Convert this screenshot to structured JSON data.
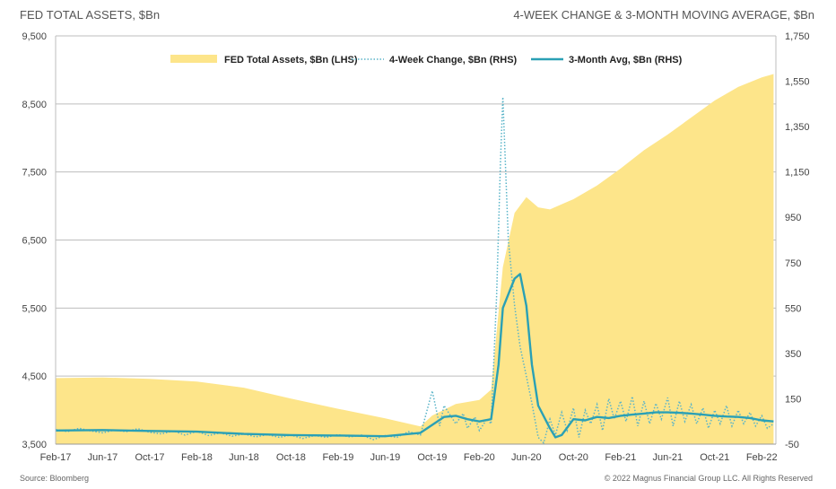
{
  "titles": {
    "left": "FED TOTAL ASSETS, $Bn",
    "right": "4-WEEK CHANGE & 3-MONTH MOVING AVERAGE, $Bn"
  },
  "footer": {
    "source": "Source: Bloomberg",
    "copyright": "© 2022 Magnus Financial Group LLC. All Rights Reserved"
  },
  "chart_data": {
    "type": "area",
    "x_tick_labels": [
      "Feb-17",
      "Jun-17",
      "Oct-17",
      "Feb-18",
      "Jun-18",
      "Oct-18",
      "Feb-19",
      "Jun-19",
      "Oct-19",
      "Feb-20",
      "Jun-20",
      "Oct-20",
      "Feb-21",
      "Jun-21",
      "Oct-21",
      "Feb-22"
    ],
    "y_left": {
      "ylim": [
        3500,
        9500
      ],
      "ticks": [
        "3,500",
        "4,500",
        "5,500",
        "6,500",
        "7,500",
        "8,500",
        "9,500"
      ]
    },
    "y_right": {
      "ylim": [
        -50,
        1750
      ],
      "ticks": [
        "-50",
        "150",
        "350",
        "550",
        "750",
        "950",
        "1,150",
        "1,350",
        "1,550",
        "1,750"
      ]
    },
    "grid": true,
    "legend_position": "top",
    "colors": {
      "assets": "#fde58a",
      "change": "#5ab4c8",
      "avg": "#2aa0b5",
      "grid": "#bdbdbd"
    },
    "x_start": "2017-02",
    "series": [
      {
        "name": "FED Total Assets, $Bn (LHS)",
        "axis": "left",
        "style": "area",
        "points": [
          [
            "2017-02",
            4470
          ],
          [
            "2017-06",
            4480
          ],
          [
            "2017-10",
            4460
          ],
          [
            "2018-02",
            4420
          ],
          [
            "2018-06",
            4330
          ],
          [
            "2018-10",
            4170
          ],
          [
            "2019-02",
            4020
          ],
          [
            "2019-06",
            3880
          ],
          [
            "2019-09",
            3760
          ],
          [
            "2019-10",
            3920
          ],
          [
            "2019-12",
            4090
          ],
          [
            "2020-02",
            4150
          ],
          [
            "2020-03",
            4300
          ],
          [
            "2020-04",
            6100
          ],
          [
            "2020-05",
            6900
          ],
          [
            "2020-06",
            7130
          ],
          [
            "2020-07",
            6980
          ],
          [
            "2020-08",
            6950
          ],
          [
            "2020-10",
            7100
          ],
          [
            "2020-12",
            7300
          ],
          [
            "2021-02",
            7550
          ],
          [
            "2021-04",
            7820
          ],
          [
            "2021-06",
            8050
          ],
          [
            "2021-08",
            8300
          ],
          [
            "2021-10",
            8550
          ],
          [
            "2021-12",
            8750
          ],
          [
            "2022-02",
            8890
          ],
          [
            "2022-03",
            8940
          ]
        ]
      },
      {
        "name": "4-Week Change, $Bn (RHS)",
        "axis": "right",
        "style": "dotted",
        "points": [
          [
            "2017-02",
            15
          ],
          [
            "2017-03",
            5
          ],
          [
            "2017-04",
            20
          ],
          [
            "2017-05",
            8
          ],
          [
            "2017-06",
            0
          ],
          [
            "2017-07",
            12
          ],
          [
            "2017-08",
            5
          ],
          [
            "2017-09",
            18
          ],
          [
            "2017-10",
            2
          ],
          [
            "2017-11",
            -5
          ],
          [
            "2017-12",
            8
          ],
          [
            "2018-01",
            -10
          ],
          [
            "2018-02",
            6
          ],
          [
            "2018-03",
            -12
          ],
          [
            "2018-04",
            0
          ],
          [
            "2018-05",
            -15
          ],
          [
            "2018-06",
            -5
          ],
          [
            "2018-07",
            -18
          ],
          [
            "2018-08",
            -8
          ],
          [
            "2018-09",
            -20
          ],
          [
            "2018-10",
            -10
          ],
          [
            "2018-11",
            -25
          ],
          [
            "2018-12",
            -12
          ],
          [
            "2019-01",
            -20
          ],
          [
            "2019-02",
            -8
          ],
          [
            "2019-03",
            -18
          ],
          [
            "2019-04",
            -10
          ],
          [
            "2019-05",
            -30
          ],
          [
            "2019-06",
            -12
          ],
          [
            "2019-07",
            -20
          ],
          [
            "2019-08",
            5
          ],
          [
            "2019-09",
            -10
          ],
          [
            "2019-10",
            185
          ],
          [
            "2019-10-20",
            30
          ],
          [
            "2019-11",
            120
          ],
          [
            "2019-12",
            40
          ],
          [
            "2019-12-20",
            85
          ],
          [
            "2020-01",
            20
          ],
          [
            "2020-01-20",
            70
          ],
          [
            "2020-02",
            10
          ],
          [
            "2020-02-20",
            60
          ],
          [
            "2020-03",
            40
          ],
          [
            "2020-03-15",
            600
          ],
          [
            "2020-03-25",
            1200
          ],
          [
            "2020-04",
            1480
          ],
          [
            "2020-04-15",
            850
          ],
          [
            "2020-05",
            560
          ],
          [
            "2020-05-15",
            380
          ],
          [
            "2020-06",
            250
          ],
          [
            "2020-06-15",
            130
          ],
          [
            "2020-07",
            -20
          ],
          [
            "2020-07-15",
            -45
          ],
          [
            "2020-08",
            60
          ],
          [
            "2020-08-15",
            -10
          ],
          [
            "2020-09",
            90
          ],
          [
            "2020-09-15",
            10
          ],
          [
            "2020-10",
            110
          ],
          [
            "2020-10-15",
            -20
          ],
          [
            "2020-11",
            100
          ],
          [
            "2020-11-15",
            40
          ],
          [
            "2020-12",
            125
          ],
          [
            "2020-12-15",
            10
          ],
          [
            "2021-01",
            150
          ],
          [
            "2021-01-15",
            60
          ],
          [
            "2021-02",
            140
          ],
          [
            "2021-02-15",
            50
          ],
          [
            "2021-03",
            160
          ],
          [
            "2021-03-15",
            30
          ],
          [
            "2021-04",
            140
          ],
          [
            "2021-04-15",
            40
          ],
          [
            "2021-05",
            130
          ],
          [
            "2021-05-15",
            60
          ],
          [
            "2021-06",
            155
          ],
          [
            "2021-06-15",
            30
          ],
          [
            "2021-07",
            140
          ],
          [
            "2021-07-15",
            50
          ],
          [
            "2021-08",
            125
          ],
          [
            "2021-08-15",
            40
          ],
          [
            "2021-09",
            110
          ],
          [
            "2021-09-15",
            20
          ],
          [
            "2021-10",
            100
          ],
          [
            "2021-10-15",
            40
          ],
          [
            "2021-11",
            120
          ],
          [
            "2021-11-15",
            30
          ],
          [
            "2021-12",
            100
          ],
          [
            "2021-12-15",
            40
          ],
          [
            "2022-01",
            90
          ],
          [
            "2022-01-15",
            30
          ],
          [
            "2022-02",
            75
          ],
          [
            "2022-02-15",
            20
          ],
          [
            "2022-03",
            40
          ]
        ]
      },
      {
        "name": "3-Month Avg, $Bn (RHS)",
        "axis": "right",
        "style": "solid",
        "points": [
          [
            "2017-02",
            10
          ],
          [
            "2017-06",
            12
          ],
          [
            "2017-10",
            8
          ],
          [
            "2018-02",
            5
          ],
          [
            "2018-06",
            -5
          ],
          [
            "2018-10",
            -10
          ],
          [
            "2019-02",
            -12
          ],
          [
            "2019-06",
            -15
          ],
          [
            "2019-09",
            0
          ],
          [
            "2019-11",
            70
          ],
          [
            "2019-12",
            75
          ],
          [
            "2020-01",
            60
          ],
          [
            "2020-02",
            50
          ],
          [
            "2020-03",
            60
          ],
          [
            "2020-03-20",
            300
          ],
          [
            "2020-04",
            550
          ],
          [
            "2020-05",
            680
          ],
          [
            "2020-05-15",
            700
          ],
          [
            "2020-06",
            560
          ],
          [
            "2020-06-15",
            300
          ],
          [
            "2020-07",
            120
          ],
          [
            "2020-08",
            20
          ],
          [
            "2020-08-15",
            -20
          ],
          [
            "2020-09",
            -10
          ],
          [
            "2020-10",
            60
          ],
          [
            "2020-11",
            55
          ],
          [
            "2020-12",
            70
          ],
          [
            "2021-01",
            65
          ],
          [
            "2021-02",
            75
          ],
          [
            "2021-03",
            80
          ],
          [
            "2021-04",
            85
          ],
          [
            "2021-05",
            90
          ],
          [
            "2021-06",
            90
          ],
          [
            "2021-07",
            88
          ],
          [
            "2021-08",
            85
          ],
          [
            "2021-09",
            80
          ],
          [
            "2021-10",
            75
          ],
          [
            "2021-11",
            72
          ],
          [
            "2021-12",
            70
          ],
          [
            "2022-01",
            65
          ],
          [
            "2022-02",
            55
          ],
          [
            "2022-03",
            50
          ]
        ]
      }
    ]
  }
}
